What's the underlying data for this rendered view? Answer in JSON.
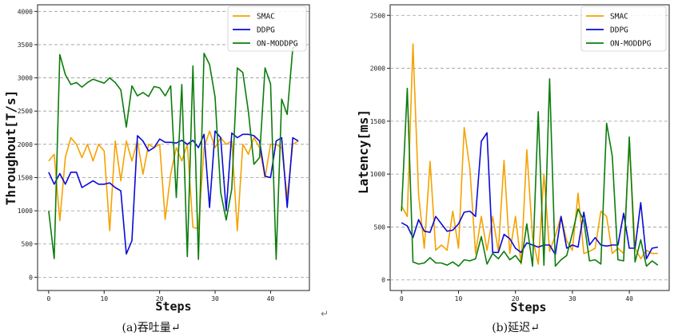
{
  "colors": {
    "SMAC": "#f5a200",
    "DDPG": "#0a0ad6",
    "ON-MODDPG": "#0b7d0b",
    "grid": "#9a9a9a"
  },
  "chart_data": [
    {
      "type": "line",
      "xlabel": "Steps",
      "ylabel": "Throughout[T/s]",
      "caption": "(a)吞吐量↵",
      "xlim": [
        -2,
        47
      ],
      "ylim": [
        -200,
        4100
      ],
      "xticks": [
        0,
        10,
        20,
        30,
        40
      ],
      "yticks": [
        0,
        500,
        1000,
        1500,
        2000,
        2500,
        3000,
        3500,
        4000
      ],
      "grid": "horizontal dashed",
      "legend_position": "top-right",
      "x": [
        0,
        1,
        2,
        3,
        4,
        5,
        6,
        7,
        8,
        9,
        10,
        11,
        12,
        13,
        14,
        15,
        16,
        17,
        18,
        19,
        20,
        21,
        22,
        23,
        24,
        25,
        26,
        27,
        28,
        29,
        30,
        31,
        32,
        33,
        34,
        35,
        36,
        37,
        38,
        39,
        40,
        41,
        42,
        43,
        44,
        45
      ],
      "series": [
        {
          "name": "SMAC",
          "values": [
            1750,
            1850,
            850,
            1800,
            2100,
            2000,
            1800,
            2000,
            1750,
            2000,
            1900,
            700,
            2050,
            1450,
            2050,
            1750,
            2050,
            1550,
            2000,
            1950,
            2000,
            870,
            1550,
            1950,
            1750,
            2000,
            750,
            730,
            1950,
            2200,
            1950,
            2100,
            2000,
            2050,
            700,
            2000,
            1850,
            2100,
            1950,
            1500,
            2000,
            2000,
            1950,
            1200,
            2000,
            2050
          ]
        },
        {
          "name": "DDPG",
          "values": [
            1580,
            1400,
            1560,
            1400,
            1580,
            1580,
            1350,
            1400,
            1450,
            1400,
            1400,
            1420,
            1350,
            1300,
            350,
            550,
            2130,
            2050,
            1900,
            1950,
            2080,
            2030,
            2030,
            2020,
            2060,
            2000,
            2060,
            1950,
            2150,
            1050,
            2200,
            2100,
            1000,
            2170,
            2100,
            2150,
            2150,
            2130,
            2050,
            1520,
            1500,
            2050,
            2100,
            1050,
            2100,
            2050
          ]
        },
        {
          "name": "ON-MODDPG",
          "values": [
            1000,
            280,
            3350,
            3050,
            2900,
            2930,
            2860,
            2930,
            2980,
            2950,
            2920,
            3000,
            2930,
            2820,
            2260,
            2880,
            2730,
            2780,
            2720,
            2870,
            2850,
            2730,
            2880,
            1200,
            2900,
            310,
            3180,
            270,
            3370,
            3200,
            2710,
            1280,
            860,
            1330,
            3150,
            3080,
            2490,
            1700,
            1800,
            3150,
            2910,
            270,
            2680,
            2450,
            3450,
            3500
          ]
        }
      ]
    },
    {
      "type": "line",
      "xlabel": "Steps",
      "ylabel": "Latency[ms]",
      "caption": "(b)延迟↵",
      "xlim": [
        -2,
        47
      ],
      "ylim": [
        -100,
        2600
      ],
      "xticks": [
        0,
        10,
        20,
        30,
        40
      ],
      "yticks": [
        0,
        500,
        1000,
        1500,
        2000,
        2500
      ],
      "grid": "horizontal dashed",
      "legend_position": "top-right",
      "x": [
        0,
        1,
        2,
        3,
        4,
        5,
        6,
        7,
        8,
        9,
        10,
        11,
        12,
        13,
        14,
        15,
        16,
        17,
        18,
        19,
        20,
        21,
        22,
        23,
        24,
        25,
        26,
        27,
        28,
        29,
        30,
        31,
        32,
        33,
        34,
        35,
        36,
        37,
        38,
        39,
        40,
        41,
        42,
        43,
        44,
        45
      ],
      "series": [
        {
          "name": "SMAC",
          "values": [
            700,
            600,
            2230,
            800,
            300,
            1120,
            280,
            330,
            280,
            650,
            300,
            1440,
            1050,
            250,
            600,
            280,
            600,
            270,
            1130,
            250,
            600,
            150,
            1230,
            400,
            150,
            1000,
            270,
            420,
            600,
            370,
            280,
            820,
            250,
            270,
            300,
            650,
            600,
            250,
            300,
            250,
            1300,
            300,
            200,
            280,
            250,
            250
          ]
        },
        {
          "name": "DDPG",
          "values": [
            540,
            510,
            400,
            570,
            460,
            450,
            600,
            530,
            460,
            470,
            530,
            640,
            650,
            600,
            1310,
            1390,
            260,
            260,
            430,
            390,
            300,
            260,
            350,
            330,
            310,
            330,
            330,
            240,
            600,
            300,
            330,
            310,
            640,
            330,
            400,
            330,
            320,
            330,
            330,
            630,
            300,
            300,
            730,
            200,
            300,
            310
          ]
        },
        {
          "name": "ON-MODDPG",
          "values": [
            650,
            1810,
            170,
            150,
            160,
            210,
            160,
            160,
            140,
            170,
            130,
            190,
            180,
            200,
            410,
            150,
            250,
            200,
            270,
            190,
            230,
            160,
            530,
            130,
            1590,
            140,
            1900,
            130,
            190,
            230,
            440,
            670,
            560,
            180,
            190,
            150,
            1480,
            1170,
            190,
            180,
            1350,
            170,
            380,
            130,
            180,
            140
          ]
        }
      ]
    }
  ],
  "stray_mark": "↵"
}
